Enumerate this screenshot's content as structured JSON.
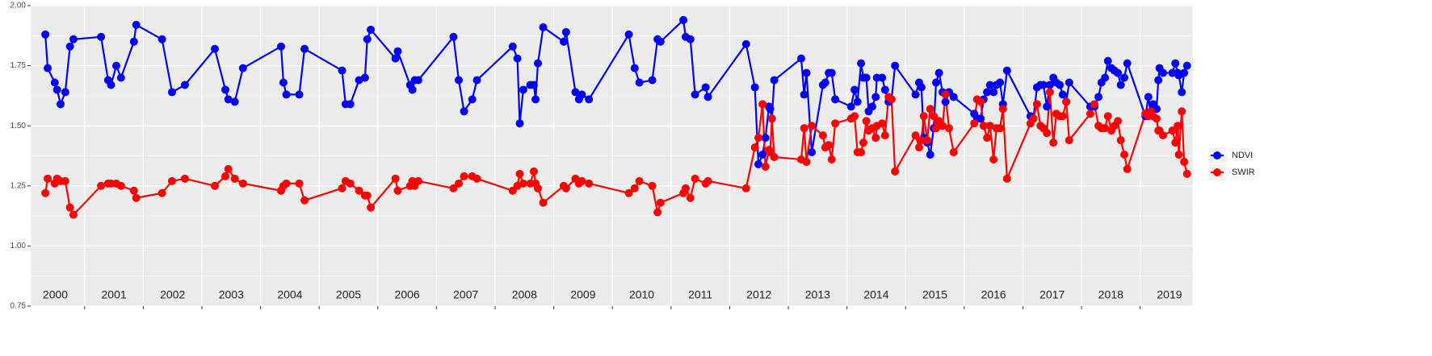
{
  "chart_data": {
    "type": "line",
    "xlim": [
      2000.08,
      2019.9
    ],
    "ylim": [
      0.75,
      2.0
    ],
    "yticks": [
      {
        "value": 0.75,
        "label": "0.75"
      },
      {
        "value": 1.0,
        "label": "1.00"
      },
      {
        "value": 1.25,
        "label": "1.25"
      },
      {
        "value": 1.5,
        "label": "1.50"
      },
      {
        "value": 1.75,
        "label": "1.75"
      },
      {
        "value": 2.0,
        "label": "2.00"
      }
    ],
    "yminor": [
      0.875,
      1.125,
      1.375,
      1.625,
      1.875
    ],
    "xticks": [
      {
        "value": 2000.5,
        "label": "2000"
      },
      {
        "value": 2001.5,
        "label": "2001"
      },
      {
        "value": 2002.5,
        "label": "2002"
      },
      {
        "value": 2003.5,
        "label": "2003"
      },
      {
        "value": 2004.5,
        "label": "2004"
      },
      {
        "value": 2005.5,
        "label": "2005"
      },
      {
        "value": 2006.5,
        "label": "2006"
      },
      {
        "value": 2007.5,
        "label": "2007"
      },
      {
        "value": 2008.5,
        "label": "2008"
      },
      {
        "value": 2009.5,
        "label": "2009"
      },
      {
        "value": 2010.5,
        "label": "2010"
      },
      {
        "value": 2011.5,
        "label": "2011"
      },
      {
        "value": 2012.5,
        "label": "2012"
      },
      {
        "value": 2013.5,
        "label": "2013"
      },
      {
        "value": 2014.5,
        "label": "2014"
      },
      {
        "value": 2015.5,
        "label": "2015"
      },
      {
        "value": 2016.5,
        "label": "2016"
      },
      {
        "value": 2017.5,
        "label": "2017"
      },
      {
        "value": 2018.5,
        "label": "2018"
      },
      {
        "value": 2019.5,
        "label": "2019"
      }
    ],
    "xgrid": [
      2001,
      2002,
      2003,
      2004,
      2005,
      2006,
      2007,
      2008,
      2009,
      2010,
      2011,
      2012,
      2013,
      2014,
      2015,
      2016,
      2017,
      2018,
      2019
    ],
    "grid": true,
    "legend": "right",
    "x": [
      2000.33,
      2000.37,
      2000.49,
      2000.53,
      2000.59,
      2000.67,
      2000.75,
      2000.81,
      2001.28,
      2001.4,
      2001.45,
      2001.54,
      2001.62,
      2001.84,
      2001.88,
      2002.32,
      2002.49,
      2002.71,
      2003.22,
      2003.4,
      2003.45,
      2003.56,
      2003.7,
      2004.35,
      2004.39,
      2004.44,
      2004.66,
      2004.75,
      2005.39,
      2005.45,
      2005.53,
      2005.68,
      2005.78,
      2005.82,
      2005.88,
      2006.3,
      2006.34,
      2006.55,
      2006.59,
      2006.63,
      2006.69,
      2007.29,
      2007.38,
      2007.47,
      2007.61,
      2007.69,
      2008.3,
      2008.38,
      2008.42,
      2008.48,
      2008.6,
      2008.66,
      2008.69,
      2008.73,
      2008.82,
      2009.17,
      2009.21,
      2009.37,
      2009.43,
      2009.48,
      2009.6,
      2010.28,
      2010.38,
      2010.46,
      2010.68,
      2010.77,
      2010.82,
      2011.21,
      2011.25,
      2011.33,
      2011.41,
      2011.59,
      2011.63,
      2012.28,
      2012.43,
      2012.49,
      2012.56,
      2012.61,
      2012.67,
      2012.69,
      2012.72,
      2012.76,
      2013.22,
      2013.27,
      2013.31,
      2013.4,
      2013.59,
      2013.63,
      2013.69,
      2013.74,
      2013.8,
      2014.07,
      2014.13,
      2014.18,
      2014.24,
      2014.28,
      2014.33,
      2014.37,
      2014.43,
      2014.49,
      2014.51,
      2014.6,
      2014.65,
      2014.71,
      2014.76,
      2014.82,
      2015.17,
      2015.23,
      2015.27,
      2015.31,
      2015.37,
      2015.42,
      2015.48,
      2015.52,
      2015.57,
      2015.63,
      2015.68,
      2015.74,
      2015.82,
      2016.17,
      2016.22,
      2016.28,
      2016.33,
      2016.39,
      2016.44,
      2016.5,
      2016.55,
      2016.61,
      2016.66,
      2016.73,
      2017.13,
      2017.18,
      2017.24,
      2017.3,
      2017.35,
      2017.41,
      2017.46,
      2017.52,
      2017.57,
      2017.63,
      2017.68,
      2017.74,
      2017.79,
      2018.15,
      2018.22,
      2018.29,
      2018.34,
      2018.4,
      2018.45,
      2018.51,
      2018.56,
      2018.62,
      2018.67,
      2018.73,
      2018.78,
      2019.09,
      2019.14,
      2019.18,
      2019.22,
      2019.28,
      2019.31,
      2019.33,
      2019.39,
      2019.55,
      2019.6,
      2019.64,
      2019.66,
      2019.71,
      2019.75,
      2019.8
    ],
    "series": [
      {
        "name": "NDVI",
        "color": "#0000ff",
        "values": [
          1.88,
          1.74,
          1.68,
          1.65,
          1.59,
          1.64,
          1.83,
          1.86,
          1.87,
          1.69,
          1.67,
          1.75,
          1.7,
          1.85,
          1.92,
          1.86,
          1.64,
          1.67,
          1.82,
          1.65,
          1.61,
          1.6,
          1.74,
          1.83,
          1.68,
          1.63,
          1.63,
          1.82,
          1.73,
          1.59,
          1.59,
          1.69,
          1.7,
          1.86,
          1.9,
          1.78,
          1.81,
          1.67,
          1.65,
          1.69,
          1.69,
          1.87,
          1.69,
          1.56,
          1.61,
          1.69,
          1.83,
          1.78,
          1.51,
          1.65,
          1.67,
          1.67,
          1.61,
          1.76,
          1.91,
          1.85,
          1.89,
          1.64,
          1.61,
          1.63,
          1.61,
          1.88,
          1.74,
          1.68,
          1.69,
          1.86,
          1.85,
          1.94,
          1.87,
          1.86,
          1.63,
          1.66,
          1.62,
          1.84,
          1.66,
          1.34,
          1.38,
          1.45,
          1.58,
          1.57,
          1.53,
          1.69,
          1.78,
          1.63,
          1.72,
          1.39,
          1.67,
          1.68,
          1.72,
          1.72,
          1.61,
          1.58,
          1.65,
          1.6,
          1.76,
          1.7,
          1.7,
          1.56,
          1.58,
          1.62,
          1.7,
          1.7,
          1.65,
          1.6,
          1.61,
          1.75,
          1.63,
          1.68,
          1.66,
          1.45,
          1.43,
          1.38,
          1.49,
          1.68,
          1.72,
          1.64,
          1.6,
          1.64,
          1.62,
          1.55,
          1.53,
          1.53,
          1.61,
          1.64,
          1.67,
          1.64,
          1.67,
          1.68,
          1.59,
          1.73,
          1.54,
          1.53,
          1.66,
          1.67,
          1.67,
          1.58,
          1.67,
          1.7,
          1.68,
          1.67,
          1.63,
          1.6,
          1.68,
          1.58,
          1.58,
          1.62,
          1.68,
          1.7,
          1.77,
          1.74,
          1.73,
          1.72,
          1.67,
          1.7,
          1.76,
          1.54,
          1.62,
          1.55,
          1.59,
          1.57,
          1.69,
          1.74,
          1.72,
          1.72,
          1.76,
          1.72,
          1.71,
          1.64,
          1.72,
          1.75
        ]
      },
      {
        "name": "SWIR",
        "color": "#ff0000",
        "values": [
          1.22,
          1.28,
          1.26,
          1.28,
          1.27,
          1.27,
          1.16,
          1.13,
          1.25,
          1.26,
          1.26,
          1.26,
          1.25,
          1.23,
          1.2,
          1.22,
          1.27,
          1.28,
          1.25,
          1.29,
          1.32,
          1.28,
          1.26,
          1.23,
          1.25,
          1.26,
          1.26,
          1.19,
          1.24,
          1.27,
          1.26,
          1.23,
          1.21,
          1.21,
          1.16,
          1.28,
          1.23,
          1.25,
          1.27,
          1.25,
          1.27,
          1.24,
          1.26,
          1.29,
          1.29,
          1.28,
          1.23,
          1.25,
          1.3,
          1.26,
          1.26,
          1.31,
          1.26,
          1.24,
          1.18,
          1.25,
          1.24,
          1.28,
          1.26,
          1.27,
          1.26,
          1.22,
          1.24,
          1.27,
          1.25,
          1.14,
          1.18,
          1.22,
          1.24,
          1.2,
          1.28,
          1.26,
          1.27,
          1.24,
          1.41,
          1.45,
          1.59,
          1.33,
          1.4,
          1.39,
          1.53,
          1.37,
          1.36,
          1.49,
          1.35,
          1.5,
          1.46,
          1.41,
          1.42,
          1.36,
          1.51,
          1.53,
          1.54,
          1.39,
          1.39,
          1.43,
          1.52,
          1.48,
          1.49,
          1.45,
          1.5,
          1.51,
          1.46,
          1.62,
          1.61,
          1.31,
          1.46,
          1.41,
          1.44,
          1.54,
          1.44,
          1.57,
          1.54,
          1.49,
          1.52,
          1.5,
          1.63,
          1.49,
          1.39,
          1.51,
          1.61,
          1.6,
          1.5,
          1.45,
          1.5,
          1.36,
          1.49,
          1.49,
          1.57,
          1.28,
          1.51,
          1.53,
          1.59,
          1.5,
          1.49,
          1.47,
          1.64,
          1.43,
          1.55,
          1.54,
          1.54,
          1.6,
          1.44,
          1.55,
          1.59,
          1.5,
          1.49,
          1.49,
          1.54,
          1.48,
          1.5,
          1.52,
          1.44,
          1.38,
          1.32,
          1.55,
          1.54,
          1.56,
          1.54,
          1.53,
          1.48,
          1.48,
          1.46,
          1.48,
          1.43,
          1.5,
          1.38,
          1.56,
          1.35,
          1.3
        ]
      }
    ]
  }
}
